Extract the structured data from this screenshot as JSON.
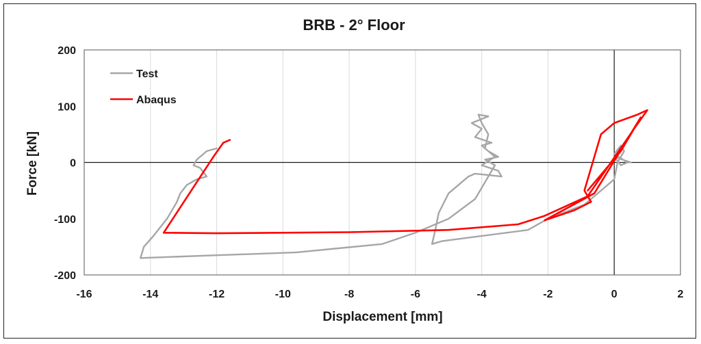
{
  "chart_data": {
    "type": "line",
    "title": "BRB - 2° Floor",
    "xlabel": "Displacement [mm]",
    "ylabel": "Force [kN]",
    "xlim": [
      -16,
      2
    ],
    "ylim": [
      -200,
      200
    ],
    "xticks": [
      -16,
      -14,
      -12,
      -10,
      -8,
      -6,
      -4,
      -2,
      0,
      2
    ],
    "yticks": [
      -200,
      -100,
      0,
      100,
      200
    ],
    "grid": "vertical",
    "legend_position": "top-left",
    "series": [
      {
        "name": "Test",
        "color": "#a6a6a6",
        "points": [
          [
            -12.0,
            25
          ],
          [
            -12.3,
            20
          ],
          [
            -12.6,
            5
          ],
          [
            -12.7,
            -5
          ],
          [
            -12.5,
            -10
          ],
          [
            -12.3,
            -25
          ],
          [
            -12.6,
            -30
          ],
          [
            -12.9,
            -40
          ],
          [
            -13.1,
            -55
          ],
          [
            -13.2,
            -70
          ],
          [
            -13.5,
            -100
          ],
          [
            -13.9,
            -130
          ],
          [
            -14.2,
            -150
          ],
          [
            -14.3,
            -170
          ],
          [
            -12.0,
            -165
          ],
          [
            -9.6,
            -160
          ],
          [
            -7.0,
            -145
          ],
          [
            -6.0,
            -125
          ],
          [
            -5.0,
            -100
          ],
          [
            -4.2,
            -65
          ],
          [
            -3.9,
            -35
          ],
          [
            -3.8,
            -25
          ],
          [
            -3.7,
            -15
          ],
          [
            -3.6,
            -5
          ],
          [
            -3.9,
            5
          ],
          [
            -3.5,
            10
          ],
          [
            -3.8,
            20
          ],
          [
            -4.0,
            30
          ],
          [
            -3.7,
            35
          ],
          [
            -4.2,
            45
          ],
          [
            -4.0,
            60
          ],
          [
            -4.3,
            70
          ],
          [
            -3.8,
            82
          ],
          [
            -4.1,
            85
          ],
          [
            -4.0,
            70
          ],
          [
            -3.8,
            50
          ],
          [
            -3.9,
            25
          ],
          [
            -3.6,
            10
          ],
          [
            -4.0,
            -5
          ],
          [
            -3.5,
            -15
          ],
          [
            -3.4,
            -25
          ],
          [
            -4.2,
            -20
          ],
          [
            -4.4,
            -25
          ],
          [
            -5.0,
            -55
          ],
          [
            -5.3,
            -90
          ],
          [
            -5.4,
            -120
          ],
          [
            -5.5,
            -145
          ],
          [
            -5.2,
            -140
          ],
          [
            -2.6,
            -120
          ],
          [
            -2.0,
            -100
          ],
          [
            -0.9,
            -75
          ],
          [
            -0.7,
            -65
          ],
          [
            0.0,
            -30
          ],
          [
            0.1,
            0
          ],
          [
            0.3,
            20
          ],
          [
            0.2,
            30
          ],
          [
            0.0,
            15
          ],
          [
            0.4,
            0
          ],
          [
            0.2,
            -5
          ],
          [
            0.0,
            10
          ],
          [
            0.5,
            0
          ]
        ]
      },
      {
        "name": "Abaqus",
        "color": "#ff0000",
        "points": [
          [
            -11.6,
            40
          ],
          [
            -11.8,
            35
          ],
          [
            -12.1,
            10
          ],
          [
            -13.6,
            -125
          ],
          [
            -12.0,
            -126
          ],
          [
            -8.0,
            -124
          ],
          [
            -5.0,
            -120
          ],
          [
            -2.9,
            -110
          ],
          [
            -2.1,
            -95
          ],
          [
            -0.8,
            -60
          ],
          [
            0.6,
            60
          ],
          [
            1.0,
            93
          ],
          [
            0.7,
            85
          ],
          [
            0.0,
            70
          ],
          [
            -0.4,
            50
          ],
          [
            -0.9,
            -50
          ],
          [
            -0.7,
            -70
          ],
          [
            -1.2,
            -85
          ],
          [
            -2.1,
            -103
          ],
          [
            -0.6,
            -55
          ],
          [
            0.8,
            80
          ],
          [
            0.2,
            20
          ],
          [
            -0.8,
            -50
          ]
        ]
      }
    ]
  }
}
